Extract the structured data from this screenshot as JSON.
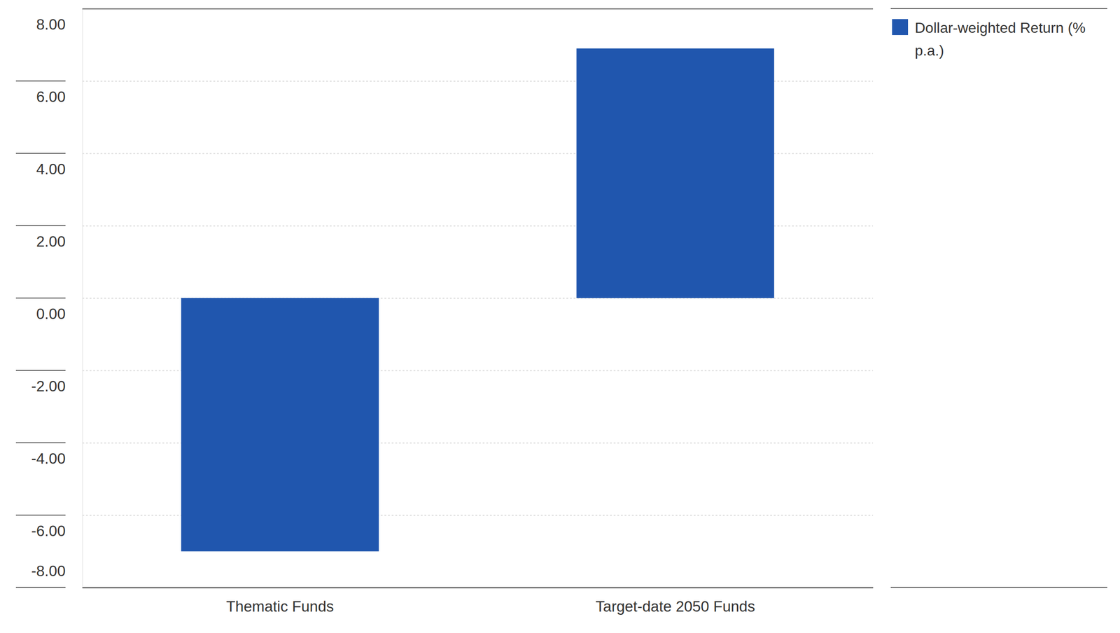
{
  "chart_data": {
    "type": "bar",
    "categories": [
      "Thematic Funds",
      "Target-date 2050 Funds"
    ],
    "series": [
      {
        "name": "Dollar-weighted Return (% p.a.)",
        "color": "#2056ae",
        "values": [
          -7.0,
          6.9
        ]
      }
    ],
    "ylim": [
      -8,
      8
    ],
    "yticks": [
      {
        "value": 8,
        "label": "8.00"
      },
      {
        "value": 6,
        "label": "6.00"
      },
      {
        "value": 4,
        "label": "4.00"
      },
      {
        "value": 2,
        "label": "2.00"
      },
      {
        "value": 0,
        "label": "0.00"
      },
      {
        "value": -2,
        "label": "-2.00"
      },
      {
        "value": -4,
        "label": "-4.00"
      },
      {
        "value": -6,
        "label": "-6.00"
      },
      {
        "value": -8,
        "label": "-8.00"
      }
    ],
    "grid": true,
    "legend": "top-right"
  }
}
